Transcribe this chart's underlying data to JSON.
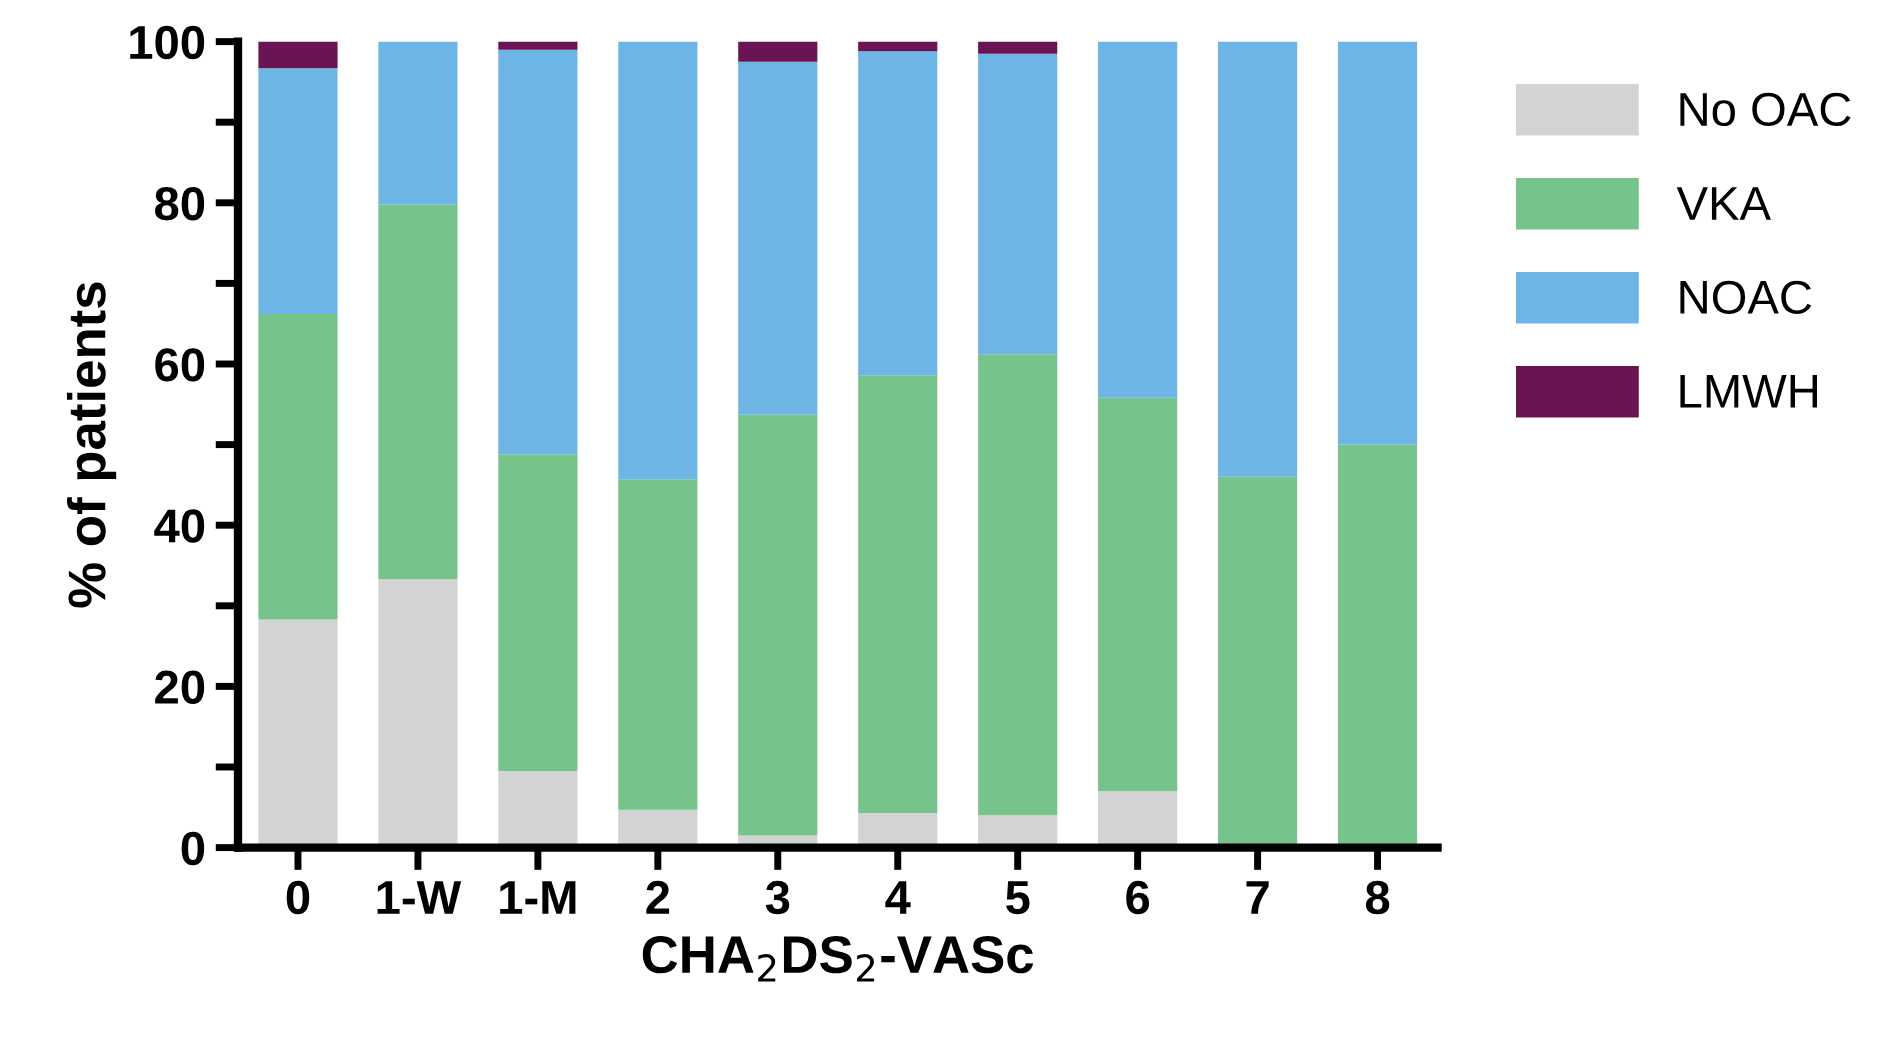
{
  "chart_data": {
    "type": "bar",
    "stacked": true,
    "xlabel": "CHA$_{2}$DS$_{2}$-VASc",
    "ylabel": "% of patients",
    "categories": [
      "0",
      "1-W",
      "1-M",
      "2",
      "3",
      "4",
      "5",
      "6",
      "7",
      "8"
    ],
    "series": [
      {
        "name": "No OAC",
        "color": "#d3d3d3",
        "values": [
          28.3,
          33.3,
          9.5,
          4.7,
          1.5,
          4.3,
          4.0,
          7.0,
          0,
          0
        ]
      },
      {
        "name": "VKA",
        "color": "#76c48b",
        "values": [
          37.9,
          46.5,
          39.3,
          41.0,
          52.2,
          54.3,
          57.2,
          48.8,
          46,
          50
        ]
      },
      {
        "name": "NOAC",
        "color": "#6db5e5",
        "values": [
          30.5,
          20.2,
          50.2,
          54.3,
          43.8,
          40.2,
          37.3,
          44.2,
          54,
          50
        ]
      },
      {
        "name": "LMWH",
        "color": "#6a1454",
        "values": [
          3.3,
          0,
          1.0,
          0,
          2.5,
          1.2,
          1.5,
          0,
          0,
          0
        ]
      }
    ],
    "ylim": [
      0,
      100
    ],
    "yticks": [
      0,
      {
        "value": 10,
        "label": null
      },
      20,
      {
        "value": 30,
        "label": null
      },
      40,
      {
        "value": 50,
        "label": null
      },
      60,
      {
        "value": 70,
        "label": null
      },
      80,
      {
        "value": 90,
        "label": null
      },
      100
    ],
    "grid": false,
    "legend": "right"
  }
}
